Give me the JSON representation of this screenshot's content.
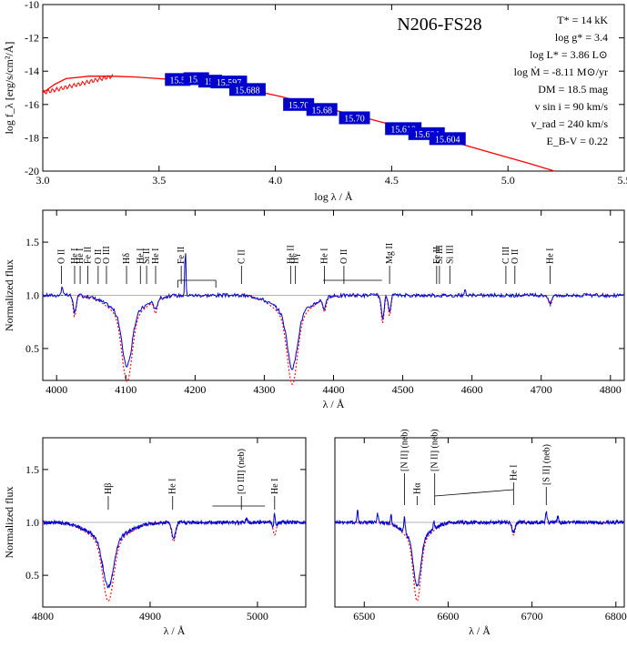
{
  "chart_data": [
    {
      "type": "line",
      "title": "N206-FS28",
      "xlabel": "log λ / Å",
      "ylabel": "log f_λ [erg/s/cm²/Å]",
      "xlim": [
        3.0,
        5.5
      ],
      "ylim": [
        -20,
        -10
      ],
      "x_ticks": [
        "3.0",
        "3.5",
        "4.0",
        "4.5",
        "5.0",
        "5.5"
      ],
      "y_ticks": [
        "-20",
        "-18",
        "-16",
        "-14",
        "-12",
        "-10"
      ],
      "params": [
        "T* = 14 kK",
        "log g* = 3.4",
        "log L* = 3.86 L⊙",
        "log Ṁ = -8.11 M⊙/yr",
        "DM = 18.5 mag",
        "v sin i = 90 km/s",
        "v_rad = 240 km/s",
        "E_B-V = 0.22"
      ],
      "series": [
        {
          "points": [
            [
              3.0,
              -15.3
            ],
            [
              3.05,
              -14.8
            ],
            [
              3.1,
              -14.45
            ],
            [
              3.2,
              -14.3
            ],
            [
              3.3,
              -14.3
            ],
            [
              3.4,
              -14.35
            ],
            [
              3.5,
              -14.45
            ],
            [
              3.6,
              -14.55
            ],
            [
              3.7,
              -14.7
            ],
            [
              3.8,
              -14.9
            ],
            [
              3.9,
              -15.15
            ],
            [
              4.0,
              -15.45
            ],
            [
              4.1,
              -15.78
            ],
            [
              4.2,
              -16.15
            ],
            [
              4.3,
              -16.5
            ],
            [
              4.4,
              -16.85
            ],
            [
              4.5,
              -17.22
            ],
            [
              4.6,
              -17.6
            ],
            [
              4.7,
              -17.98
            ],
            [
              4.8,
              -18.38
            ],
            [
              4.9,
              -18.78
            ],
            [
              5.0,
              -19.18
            ],
            [
              5.1,
              -19.58
            ],
            [
              5.2,
              -20.0
            ]
          ]
        }
      ],
      "photometry": [
        {
          "x": 3.58,
          "y": -14.5,
          "label": "15.5"
        },
        {
          "x": 3.66,
          "y": -14.45,
          "label": "15.7"
        },
        {
          "x": 3.72,
          "y": -14.6,
          "label": "15."
        },
        {
          "x": 3.8,
          "y": -14.65,
          "label": "15.597"
        },
        {
          "x": 3.88,
          "y": -15.1,
          "label": "15.688"
        },
        {
          "x": 4.1,
          "y": -16.0,
          "label": "15.70"
        },
        {
          "x": 4.2,
          "y": -16.3,
          "label": "15.68"
        },
        {
          "x": 4.34,
          "y": -16.8,
          "label": "15.70"
        },
        {
          "x": 4.55,
          "y": -17.45,
          "label": "15.618"
        },
        {
          "x": 4.65,
          "y": -17.75,
          "label": "15.604"
        },
        {
          "x": 4.74,
          "y": -18.05,
          "label": "15.604"
        }
      ]
    },
    {
      "type": "line",
      "xlabel": "λ / Å",
      "ylabel": "Normalized flux",
      "xlim": [
        3980,
        4820
      ],
      "ylim": [
        0.2,
        1.8
      ],
      "x_ticks": [
        "4000",
        "4100",
        "4200",
        "4300",
        "4400",
        "4500",
        "4600",
        "4700",
        "4800"
      ],
      "y_ticks": [
        "0.5",
        "1.0",
        "1.5"
      ],
      "continuum": 1.0,
      "lines": [
        {
          "name": "Hδ",
          "center": 4101.7,
          "depth": 0.6,
          "width": 10,
          "label_x": 4102
        },
        {
          "name": "Hγ",
          "center": 4340.5,
          "depth": 0.62,
          "width": 10,
          "label_x": 4345
        },
        {
          "name": "He I 4026",
          "center": 4026,
          "depth": 0.2,
          "width": 3
        },
        {
          "name": "He I 4143",
          "center": 4143,
          "depth": 0.12,
          "width": 3
        },
        {
          "name": "He I 4387",
          "center": 4387,
          "depth": 0.12,
          "width": 3
        },
        {
          "name": "He I 4471",
          "center": 4471,
          "depth": 0.26,
          "width": 3
        },
        {
          "name": "Mg II",
          "center": 4481,
          "depth": 0.2,
          "width": 2.5
        },
        {
          "name": "He I 4713",
          "center": 4713,
          "depth": 0.1,
          "width": 3
        }
      ],
      "labels": [
        "O II",
        "He I",
        "He I",
        "Fe II",
        "O II",
        "O III",
        "Hδ",
        "He I",
        "Si II",
        "He I",
        "Fe II",
        "C II",
        "He II",
        "Hγ",
        "He I",
        "O II",
        "Mg II",
        "Fe II",
        "Si III",
        "Si III",
        "C III",
        "O II",
        "He I"
      ]
    },
    {
      "type": "line",
      "xlabel": "λ / Å",
      "ylabel": "Normalized flux",
      "xlim": [
        4800,
        5045
      ],
      "ylim": [
        0.2,
        1.8
      ],
      "x_ticks": [
        "4800",
        "4900",
        "5000"
      ],
      "y_ticks": [
        "0.5",
        "1.0",
        "1.5"
      ],
      "continuum": 1.0,
      "lines": [
        {
          "name": "Hβ",
          "center": 4861,
          "depth": 0.55,
          "width": 7
        },
        {
          "name": "He I",
          "center": 4922,
          "depth": 0.18,
          "width": 2.5
        },
        {
          "name": "He I",
          "center": 5016,
          "depth": 0.12,
          "width": 2
        }
      ],
      "labels": [
        "Hβ",
        "He I",
        "[O III] (neb)",
        "He I"
      ]
    },
    {
      "type": "line",
      "xlabel": "λ / Å",
      "ylabel": "",
      "xlim": [
        6465,
        6810
      ],
      "ylim": [
        0.2,
        1.8
      ],
      "x_ticks": [
        "6500",
        "6600",
        "6700",
        "6800"
      ],
      "continuum": 1.0,
      "lines": [
        {
          "name": "Hα",
          "center": 6563,
          "depth": 0.55,
          "width": 6
        },
        {
          "name": "He I",
          "center": 6678,
          "depth": 0.12,
          "width": 2.5
        }
      ],
      "labels": [
        "[N II] (neb)",
        "Hα",
        "He I",
        "[N II] (neb)",
        "[S II] (neb)"
      ]
    }
  ],
  "colors": {
    "model": "#ff0000",
    "observed": "#0000cc",
    "photometry_box": "#0000cc",
    "continuum": "#999999"
  }
}
